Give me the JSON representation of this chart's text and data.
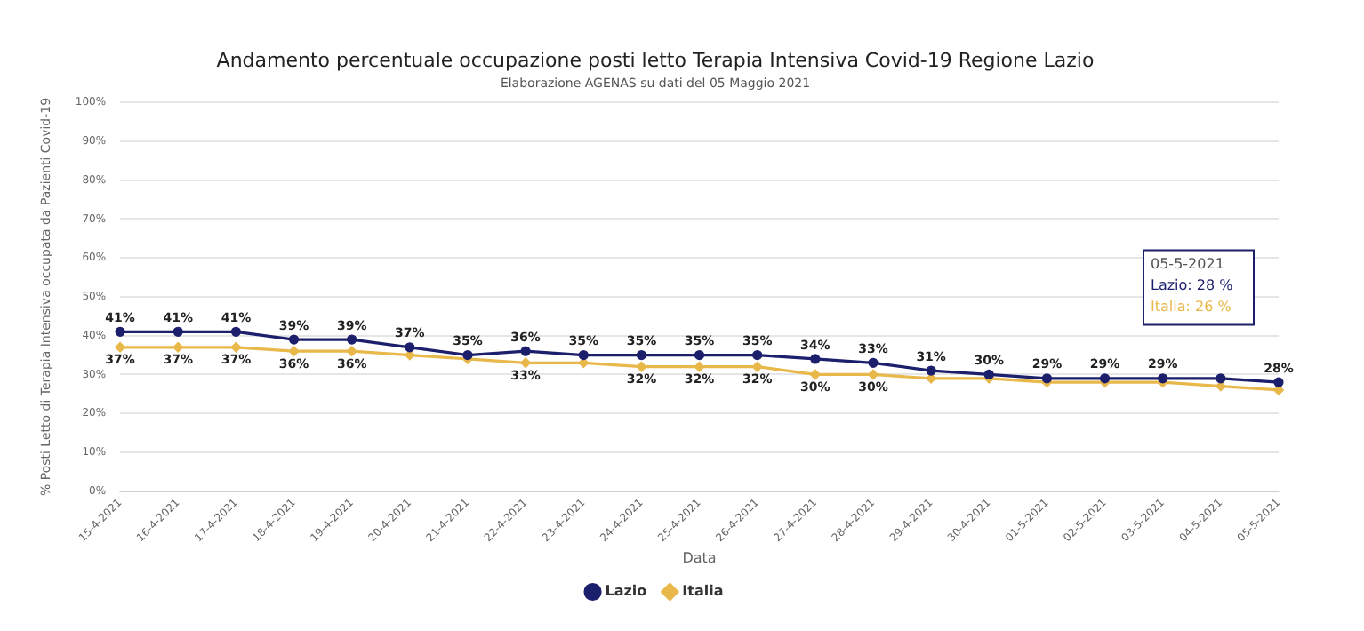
{
  "chart_data": {
    "type": "line",
    "title": "Andamento percentuale occupazione posti letto Terapia Intensiva Covid-19 Regione Lazio",
    "subtitle": "Elaborazione AGENAS su dati del 05 Maggio 2021",
    "xlabel": "Data",
    "ylabel": "% Posti Letto di Terapia Intensiva occupata da Pazienti Covid-19",
    "categories": [
      "15-4-2021",
      "16-4-2021",
      "17-4-2021",
      "18-4-2021",
      "19-4-2021",
      "20-4-2021",
      "21-4-2021",
      "22-4-2021",
      "23-4-2021",
      "24-4-2021",
      "25-4-2021",
      "26-4-2021",
      "27-4-2021",
      "28-4-2021",
      "29-4-2021",
      "30-4-2021",
      "01-5-2021",
      "02-5-2021",
      "03-5-2021",
      "04-5-2021",
      "05-5-2021"
    ],
    "series": [
      {
        "name": "Lazio",
        "color": "#1c1f6b",
        "marker": "circle",
        "values": [
          41,
          41,
          41,
          39,
          39,
          37,
          35,
          36,
          35,
          35,
          35,
          35,
          34,
          33,
          31,
          30,
          29,
          29,
          29,
          29,
          28
        ],
        "value_labels": [
          "41%",
          "41%",
          "41%",
          "39%",
          "39%",
          "37%",
          "35%",
          "36%",
          "35%",
          "35%",
          "35%",
          "35%",
          "34%",
          "33%",
          "31%",
          "30%",
          "29%",
          "29%",
          "29%",
          null,
          "28%"
        ]
      },
      {
        "name": "Italia",
        "color": "#e8b84a",
        "marker": "diamond",
        "values": [
          37,
          37,
          37,
          36,
          36,
          35,
          34,
          33,
          33,
          32,
          32,
          32,
          30,
          30,
          29,
          29,
          28,
          28,
          28,
          27,
          26
        ],
        "value_labels": [
          "37%",
          "37%",
          "37%",
          "36%",
          "36%",
          null,
          null,
          "33%",
          null,
          "32%",
          "32%",
          "32%",
          "30%",
          "30%",
          null,
          null,
          null,
          null,
          null,
          null,
          null
        ]
      }
    ],
    "annotations": [
      "05-5-2021",
      "Lazio: 28 %",
      "Italia: 26 %"
    ],
    "ylim": [
      0,
      100
    ],
    "yticks": [
      {
        "value": 0,
        "label": "0%"
      },
      {
        "value": 10,
        "label": "10%"
      },
      {
        "value": 20,
        "label": "20%"
      },
      {
        "value": 30,
        "label": "30%"
      },
      {
        "value": 40,
        "label": "40%"
      },
      {
        "value": 50,
        "label": "50%"
      },
      {
        "value": 60,
        "label": "60%"
      },
      {
        "value": 70,
        "label": "70%"
      },
      {
        "value": 80,
        "label": "80%"
      },
      {
        "value": 90,
        "label": "90%"
      },
      {
        "value": 100,
        "label": "100%"
      }
    ],
    "grid": "y",
    "legend": "bottom"
  }
}
